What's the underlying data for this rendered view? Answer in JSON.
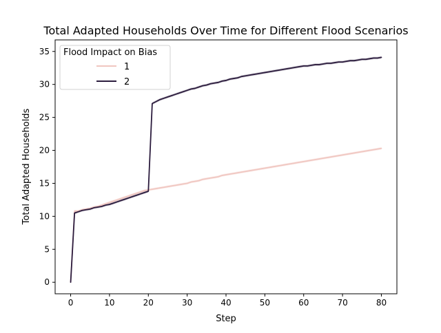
{
  "chart_data": {
    "type": "line",
    "title": "Total Adapted Households Over Time for Different Flood Scenarios",
    "xlabel": "Step",
    "ylabel": "Total Adapted Households",
    "xlim": [
      -4,
      84
    ],
    "ylim": [
      -1.75,
      36.75
    ],
    "xticks": [
      0,
      10,
      20,
      30,
      40,
      50,
      60,
      70,
      80
    ],
    "yticks": [
      0,
      5,
      10,
      15,
      20,
      25,
      30,
      35
    ],
    "grid": false,
    "legend": {
      "title": "Flood Impact on Bias",
      "placement": "top-left"
    },
    "series": [
      {
        "name": "1",
        "color": "#f0c6c0",
        "x": [
          0,
          1,
          2,
          3,
          4,
          5,
          6,
          7,
          8,
          9,
          10,
          11,
          12,
          13,
          14,
          15,
          16,
          17,
          18,
          19,
          20,
          21,
          22,
          23,
          24,
          25,
          26,
          27,
          28,
          29,
          30,
          31,
          32,
          33,
          34,
          35,
          36,
          37,
          38,
          39,
          40,
          41,
          42,
          43,
          44,
          45,
          46,
          47,
          48,
          49,
          50,
          51,
          52,
          53,
          54,
          55,
          56,
          57,
          58,
          59,
          60,
          61,
          62,
          63,
          64,
          65,
          66,
          67,
          68,
          69,
          70,
          71,
          72,
          73,
          74,
          75,
          76,
          77,
          78,
          79,
          80
        ],
        "values": [
          0,
          10.8,
          10.8,
          11.0,
          11.1,
          11.2,
          11.4,
          11.5,
          11.7,
          11.9,
          12.1,
          12.3,
          12.5,
          12.7,
          12.9,
          13.1,
          13.3,
          13.5,
          13.7,
          13.9,
          14.0,
          14.1,
          14.2,
          14.3,
          14.4,
          14.5,
          14.6,
          14.7,
          14.8,
          14.9,
          15.0,
          15.2,
          15.3,
          15.4,
          15.6,
          15.7,
          15.8,
          15.9,
          16.0,
          16.2,
          16.3,
          16.4,
          16.5,
          16.6,
          16.7,
          16.8,
          16.9,
          17.0,
          17.1,
          17.2,
          17.3,
          17.4,
          17.5,
          17.6,
          17.7,
          17.8,
          17.9,
          18.0,
          18.1,
          18.2,
          18.3,
          18.4,
          18.5,
          18.6,
          18.7,
          18.8,
          18.9,
          19.0,
          19.1,
          19.2,
          19.3,
          19.4,
          19.5,
          19.6,
          19.7,
          19.8,
          19.9,
          20.0,
          20.1,
          20.2,
          20.3
        ]
      },
      {
        "name": "2",
        "color": "#2b1b3d",
        "x": [
          0,
          1,
          2,
          3,
          4,
          5,
          6,
          7,
          8,
          9,
          10,
          11,
          12,
          13,
          14,
          15,
          16,
          17,
          18,
          19,
          20,
          21,
          22,
          23,
          24,
          25,
          26,
          27,
          28,
          29,
          30,
          31,
          32,
          33,
          34,
          35,
          36,
          37,
          38,
          39,
          40,
          41,
          42,
          43,
          44,
          45,
          46,
          47,
          48,
          49,
          50,
          51,
          52,
          53,
          54,
          55,
          56,
          57,
          58,
          59,
          60,
          61,
          62,
          63,
          64,
          65,
          66,
          67,
          68,
          69,
          70,
          71,
          72,
          73,
          74,
          75,
          76,
          77,
          78,
          79,
          80
        ],
        "values": [
          0,
          10.5,
          10.7,
          10.9,
          11.0,
          11.1,
          11.3,
          11.4,
          11.5,
          11.7,
          11.8,
          12.0,
          12.2,
          12.4,
          12.6,
          12.8,
          13.0,
          13.2,
          13.4,
          13.6,
          13.8,
          27.1,
          27.4,
          27.7,
          27.9,
          28.1,
          28.3,
          28.5,
          28.7,
          28.9,
          29.1,
          29.3,
          29.4,
          29.6,
          29.8,
          29.9,
          30.1,
          30.2,
          30.3,
          30.5,
          30.6,
          30.8,
          30.9,
          31.0,
          31.2,
          31.3,
          31.4,
          31.5,
          31.6,
          31.7,
          31.8,
          31.9,
          32.0,
          32.1,
          32.2,
          32.3,
          32.4,
          32.5,
          32.6,
          32.7,
          32.8,
          32.8,
          32.9,
          33.0,
          33.0,
          33.1,
          33.2,
          33.2,
          33.3,
          33.4,
          33.4,
          33.5,
          33.6,
          33.6,
          33.7,
          33.8,
          33.8,
          33.9,
          34.0,
          34.0,
          34.1
        ]
      }
    ],
    "bands": [
      {
        "series": "1",
        "color": "#f0c6c0",
        "opacity": 0.35
      },
      {
        "series": "2",
        "color": "#2b1b3d",
        "opacity": 0.25
      }
    ]
  }
}
